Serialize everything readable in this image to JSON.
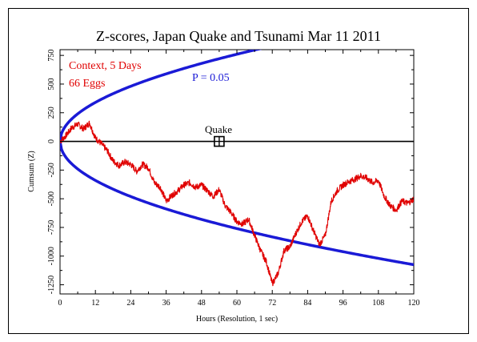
{
  "chart_data": {
    "type": "line",
    "title": "Z-scores, Japan Quake and Tsunami Mar 11 2011",
    "xlabel": "Hours (Resolution, 1 sec)",
    "ylabel": "Cumsum (Z)",
    "xlim": [
      0,
      120
    ],
    "ylim": [
      -1300,
      800
    ],
    "x_ticks": [
      0,
      12,
      24,
      36,
      48,
      60,
      72,
      84,
      96,
      108,
      120
    ],
    "y_ticks": [
      750,
      500,
      250,
      0,
      -250,
      -500,
      -750,
      -1000,
      -1250
    ],
    "annotations": {
      "context": "Context, 5 Days",
      "eggs": "66 Eggs",
      "pvalue": "P = 0.05",
      "event_label": "Quake",
      "event_x": 54
    },
    "colors": {
      "cumsum": "#e00000",
      "envelope": "#1a1ad6",
      "zero": "#000000"
    },
    "envelope": {
      "name": "P = 0.05",
      "description_values": {
        "x": [
          0,
          1,
          12,
          24,
          36,
          48,
          60,
          72,
          84,
          96,
          108,
          120
        ],
        "upper": [
          0,
          98,
          340,
          481,
          589,
          680,
          760,
          833,
          900,
          962,
          1020,
          1075
        ],
        "lower": [
          0,
          -98,
          -340,
          -481,
          -589,
          -680,
          -760,
          -833,
          -900,
          -962,
          -1020,
          -1075
        ]
      }
    },
    "series": [
      {
        "x": [
          0,
          2,
          4,
          6,
          8,
          10,
          12,
          14,
          16,
          18,
          20,
          22,
          24,
          26,
          28,
          30,
          32,
          34,
          36,
          38,
          40,
          42,
          44,
          46,
          48,
          50,
          52,
          54,
          56,
          58,
          60,
          62,
          64,
          66,
          68,
          70,
          72,
          74,
          76,
          78,
          80,
          82,
          84,
          86,
          88,
          90,
          92,
          94,
          96,
          98,
          100,
          102,
          104,
          106,
          108,
          110,
          112,
          114,
          116,
          118,
          120
        ],
        "values": [
          0,
          50,
          120,
          150,
          110,
          160,
          30,
          -20,
          -80,
          -170,
          -210,
          -180,
          -200,
          -260,
          -200,
          -230,
          -360,
          -400,
          -520,
          -470,
          -430,
          -380,
          -360,
          -400,
          -380,
          -430,
          -480,
          -420,
          -560,
          -620,
          -700,
          -720,
          -680,
          -820,
          -950,
          -1050,
          -1240,
          -1150,
          -950,
          -920,
          -800,
          -700,
          -650,
          -780,
          -900,
          -820,
          -520,
          -430,
          -380,
          -350,
          -330,
          -300,
          -320,
          -360,
          -340,
          -480,
          -560,
          -600,
          -520,
          -540,
          -500
        ]
      }
    ],
    "grid": false,
    "legend": "none"
  }
}
